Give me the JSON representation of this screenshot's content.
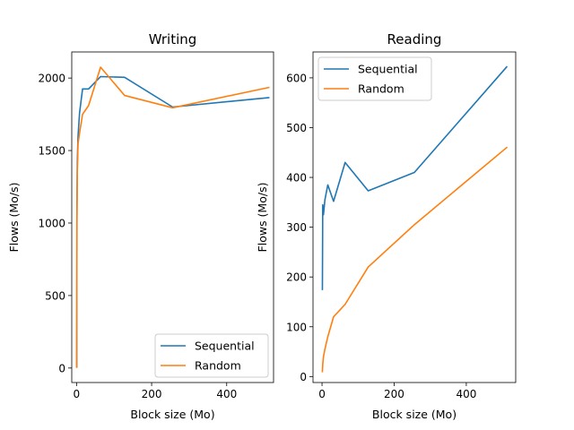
{
  "chart_data": [
    {
      "type": "line",
      "title": "Writing",
      "xlabel": "Block size (Mo)",
      "ylabel": "Flows (Mo/s)",
      "xlim": [
        -12.8,
        524.8
      ],
      "ylim": [
        -100,
        2180
      ],
      "xticks": [
        0,
        200,
        400
      ],
      "yticks": [
        0,
        500,
        1000,
        1500,
        2000
      ],
      "legend": "bottom-right",
      "grid": false,
      "series": [
        {
          "name": "Sequential",
          "color": "#1f77b4",
          "x": [
            0.5,
            1,
            2,
            4,
            8,
            16,
            32,
            64,
            128,
            256,
            512
          ],
          "y": [
            10,
            1100,
            1420,
            1600,
            1760,
            1925,
            1925,
            2010,
            2005,
            1800,
            1865
          ]
        },
        {
          "name": "Random",
          "color": "#ff7f0e",
          "x": [
            0.5,
            1,
            2,
            4,
            8,
            16,
            32,
            64,
            128,
            256,
            512
          ],
          "y": [
            5,
            1000,
            1350,
            1550,
            1620,
            1750,
            1810,
            2075,
            1880,
            1795,
            1935
          ]
        }
      ]
    },
    {
      "type": "line",
      "title": "Reading",
      "xlabel": "Block size (Mo)",
      "ylabel": "Flows (Mo/s)",
      "xlim": [
        -25,
        537
      ],
      "ylim": [
        -12,
        652
      ],
      "xticks": [
        0,
        200,
        400
      ],
      "yticks": [
        0,
        100,
        200,
        300,
        400,
        500,
        600
      ],
      "legend": "top-left",
      "grid": false,
      "series": [
        {
          "name": "Sequential",
          "color": "#1f77b4",
          "x": [
            1,
            2,
            4,
            8,
            16,
            32,
            64,
            128,
            256,
            512
          ],
          "y": [
            175,
            345,
            325,
            355,
            385,
            352,
            430,
            373,
            410,
            622
          ]
        },
        {
          "name": "Random",
          "color": "#ff7f0e",
          "x": [
            1,
            2,
            4,
            8,
            16,
            32,
            64,
            128,
            256,
            512
          ],
          "y": [
            10,
            25,
            40,
            55,
            80,
            120,
            145,
            220,
            305,
            460
          ]
        }
      ]
    }
  ]
}
